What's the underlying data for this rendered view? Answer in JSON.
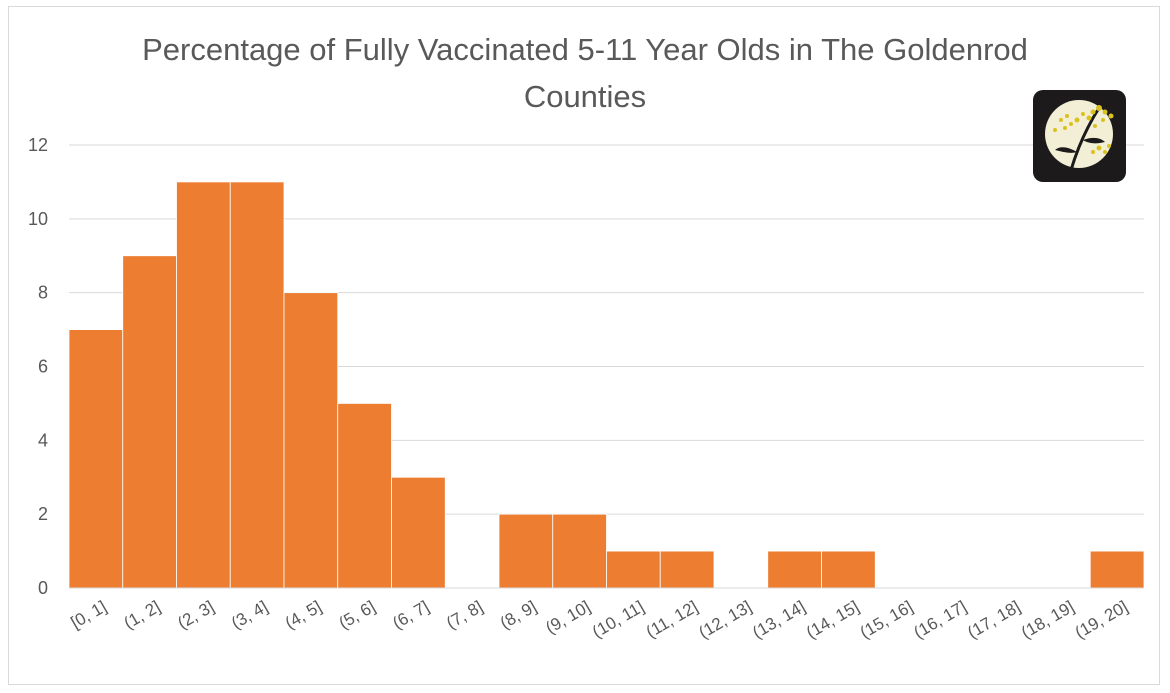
{
  "chart_data": {
    "type": "bar",
    "title_lines": [
      "Percentage of Fully Vaccinated 5-11 Year Olds in The Goldenrod",
      "Counties"
    ],
    "categories": [
      "[0, 1]",
      "(1, 2]",
      "(2, 3]",
      "(3, 4]",
      "(4, 5]",
      "(5, 6]",
      "(6, 7]",
      "(7, 8]",
      "(8, 9]",
      "(9, 10]",
      "(10, 11]",
      "(11, 12]",
      "(12, 13]",
      "(13, 14]",
      "(14, 15]",
      "(15, 16]",
      "(16, 17]",
      "(17, 18]",
      "(18, 19]",
      "(19, 20]"
    ],
    "values": [
      7,
      9,
      11,
      11,
      8,
      5,
      3,
      0,
      2,
      2,
      1,
      1,
      0,
      1,
      1,
      0,
      0,
      0,
      0,
      1
    ],
    "ylim": [
      0,
      12
    ],
    "yticks": [
      0,
      2,
      4,
      6,
      8,
      10,
      12
    ],
    "grid": true,
    "legend": "none",
    "bar_color": "#ED7D31",
    "bar_edge_color": "#ffffff",
    "grid_color": "#d9d9d9",
    "text_color": "#595959"
  },
  "logo": {
    "icon": "goldenrod-flower-logo",
    "background": "#1c1a1a",
    "moon_color": "#f3efd6",
    "flower_color": "#d9c21e"
  }
}
